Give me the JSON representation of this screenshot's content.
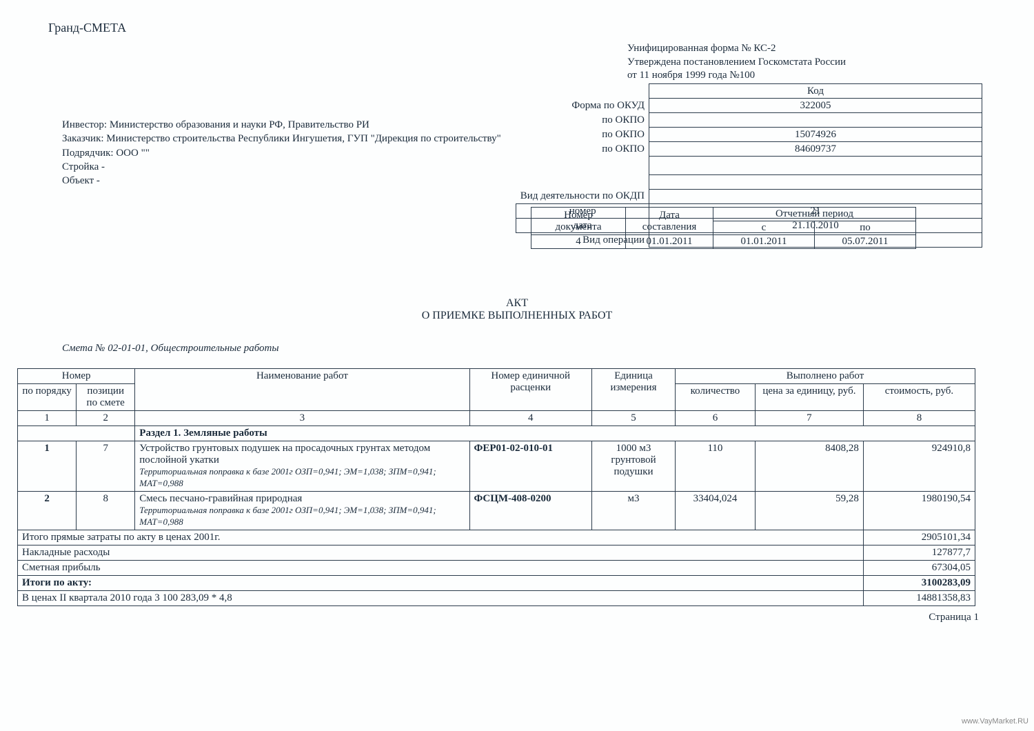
{
  "app_title": "Гранд-СМЕТА",
  "form_info": {
    "line1": "Унифицированная форма № КС-2",
    "line2": "Утверждена постановлением Госкомстата России",
    "line3": "от 11 ноября 1999 года №100"
  },
  "codes": {
    "header": "Код",
    "rows": [
      {
        "label": "Форма по ОКУД",
        "value": "322005"
      },
      {
        "label": "по ОКПО",
        "value": ""
      },
      {
        "label": "по ОКПО",
        "value": "15074926"
      },
      {
        "label": "по ОКПО",
        "value": "84609737"
      },
      {
        "label": "",
        "value": ""
      },
      {
        "label": "",
        "value": ""
      },
      {
        "label": "Вид деятельности по ОКДП",
        "value": ""
      },
      {
        "label": "номер",
        "value": "21"
      },
      {
        "label": "дата",
        "value": "21.10.2010"
      },
      {
        "label": "Вид операции",
        "value": ""
      }
    ]
  },
  "parties": {
    "investor": "Инвестор: Министерство образования и науки РФ, Правительство РИ",
    "customer": "Заказчик: Министерство строительства Республики Ингушетия, ГУП \"Дирекция по строительству\"",
    "contractor": "Подрядчик: ООО \"\"",
    "construction": "Стройка -",
    "object": "Объект -"
  },
  "period": {
    "h_docnum": "Номер документа",
    "h_date": "Дата составления",
    "h_period": "Отчетный период",
    "h_from": "с",
    "h_to": "по",
    "docnum": "4",
    "date": "01.01.2011",
    "from": "01.01.2011",
    "to": "05.07.2011"
  },
  "doc_title_1": "АКТ",
  "doc_title_2": "О ПРИЕМКЕ ВЫПОЛНЕННЫХ РАБОТ",
  "smeta_ref": "Смета № 02-01-01, Общестроительные работы",
  "columns": {
    "num_group": "Номер",
    "num_order": "по порядку",
    "num_pos": "позиции по смете",
    "name": "Наименование работ",
    "rate": "Номер единичной расценки",
    "unit": "Единица измерения",
    "done_group": "Выполнено работ",
    "qty": "количество",
    "price": "цена за единицу, руб.",
    "cost": "стоимость, руб.",
    "n1": "1",
    "n2": "2",
    "n3": "3",
    "n4": "4",
    "n5": "5",
    "n6": "6",
    "n7": "7",
    "n8": "8"
  },
  "section1": "Раздел 1. Земляные работы",
  "rows": [
    {
      "num": "1",
      "pos": "7",
      "name": "Устройство грунтовых подушек на просадочных грунтах методом послойной укатки",
      "note": "Территориальная поправка к базе 2001г ОЗП=0,941; ЭМ=1,038; ЗПМ=0,941; МАТ=0,988",
      "rate": "ФЕР01-02-010-01",
      "unit": "1000 м3 грунтовой подушки",
      "qty": "110",
      "price": "8408,28",
      "cost": "924910,8"
    },
    {
      "num": "2",
      "pos": "8",
      "name": "Смесь песчано-гравийная природная",
      "note": "Территориальная поправка к базе 2001г ОЗП=0,941; ЭМ=1,038; ЗПМ=0,941; МАТ=0,988",
      "rate": "ФСЦМ-408-0200",
      "unit": "м3",
      "qty": "33404,024",
      "price": "59,28",
      "cost": "1980190,54"
    }
  ],
  "totals": [
    {
      "label": "Итого прямые затраты по акту в ценах 2001г.",
      "value": "2905101,34",
      "bold": false
    },
    {
      "label": "Накладные расходы",
      "value": "127877,7",
      "bold": false
    },
    {
      "label": "Сметная прибыль",
      "value": "67304,05",
      "bold": false
    },
    {
      "label": "Итоги по акту:",
      "value": "3100283,09",
      "bold": true
    },
    {
      "label": "  В ценах II квартала 2010 года 3 100 283,09 * 4,8",
      "value": "14881358,83",
      "bold": false
    }
  ],
  "page": "Страница 1",
  "watermark": "www.VayMarket.RU"
}
